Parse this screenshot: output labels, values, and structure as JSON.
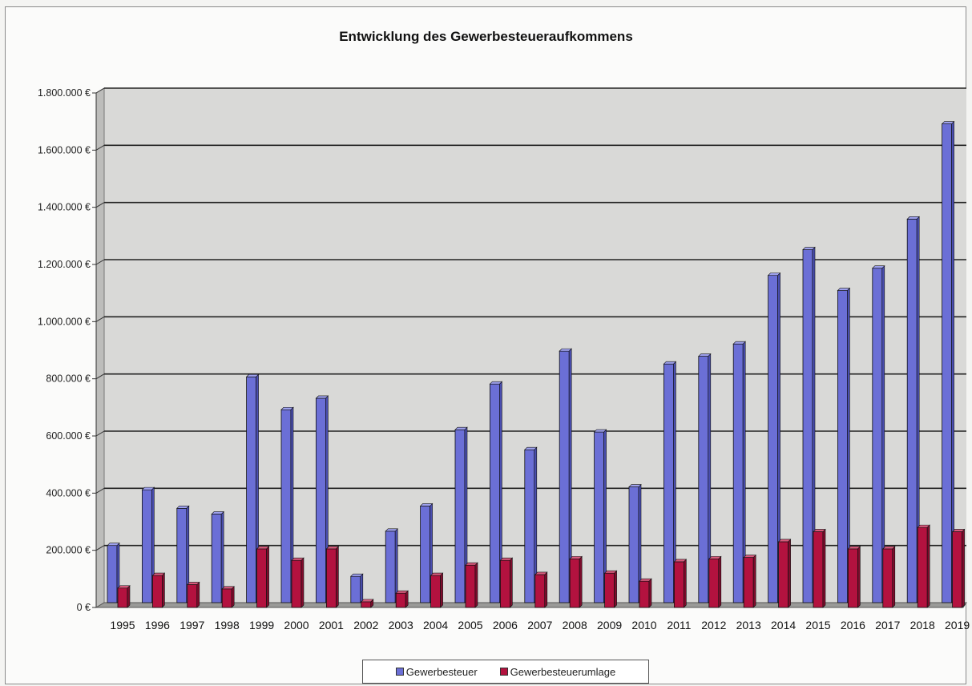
{
  "chart_data": {
    "type": "bar",
    "title": "Entwicklung des Gewerbesteueraufkommens",
    "categories": [
      "1995",
      "1996",
      "1997",
      "1998",
      "1999",
      "2000",
      "2001",
      "2002",
      "2003",
      "2004",
      "2005",
      "2006",
      "2007",
      "2008",
      "2009",
      "2010",
      "2011",
      "2012",
      "2013",
      "2014",
      "2015",
      "2016",
      "2017",
      "2018",
      "2019"
    ],
    "series": [
      {
        "name": "Gewerbesteuer",
        "color": "#6b6fd6",
        "values": [
          200000,
          395000,
          330000,
          310000,
          790000,
          675000,
          715000,
          92000,
          250000,
          338000,
          605000,
          765000,
          535000,
          880000,
          597000,
          405000,
          835000,
          862000,
          905000,
          1145000,
          1235000,
          1092000,
          1170000,
          1342000,
          1675000
        ]
      },
      {
        "name": "Gewerbesteuerumlage",
        "color": "#b3123f",
        "values": [
          68000,
          112000,
          80000,
          65000,
          205000,
          165000,
          205000,
          20000,
          50000,
          112000,
          148000,
          165000,
          115000,
          170000,
          120000,
          92000,
          160000,
          170000,
          175000,
          230000,
          265000,
          205000,
          205000,
          280000,
          265000
        ]
      }
    ],
    "yticks": [
      "0 €",
      "200.000 €",
      "400.000 €",
      "600.000 €",
      "800.000 €",
      "1.000.000 €",
      "1.200.000 €",
      "1.400.000 €",
      "1.600.000 €",
      "1.800.000 €"
    ],
    "ylim": [
      0,
      1800000
    ],
    "xlabel": "",
    "ylabel": "",
    "grid": true,
    "legend_position": "bottom"
  }
}
